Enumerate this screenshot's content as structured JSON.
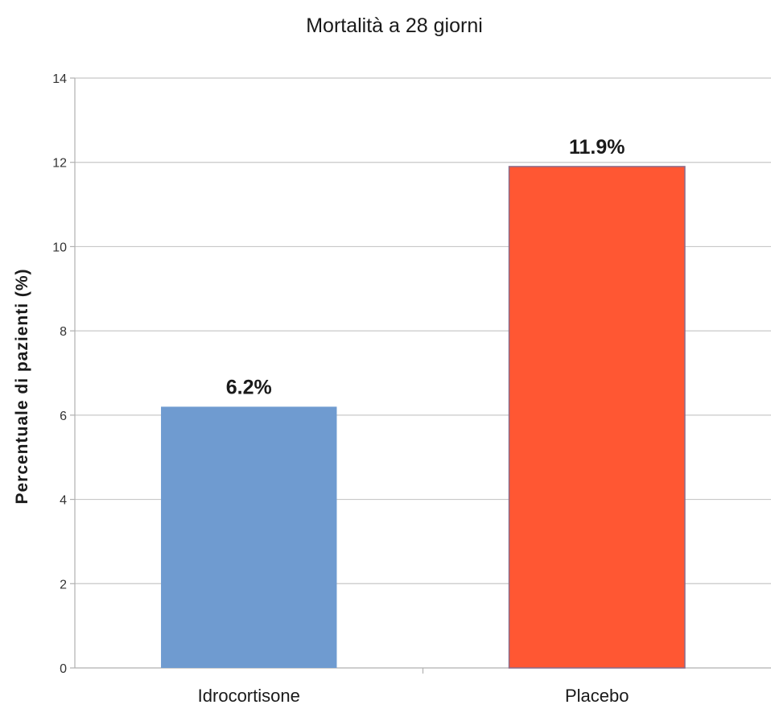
{
  "chart_data": {
    "type": "bar",
    "title": "Mortalità a 28 giorni",
    "xlabel": "",
    "ylabel": "Percentuale di pazienti (%)",
    "categories": [
      "Idrocortisone",
      "Placebo"
    ],
    "values": [
      6.2,
      11.9
    ],
    "data_labels": [
      "6.2%",
      "11.9%"
    ],
    "colors": [
      "#6f9bd0",
      "#ff5733"
    ],
    "ylim": [
      0,
      14
    ],
    "yticks": [
      0,
      2,
      4,
      6,
      8,
      10,
      12,
      14
    ],
    "grid": true,
    "legend": "none"
  }
}
